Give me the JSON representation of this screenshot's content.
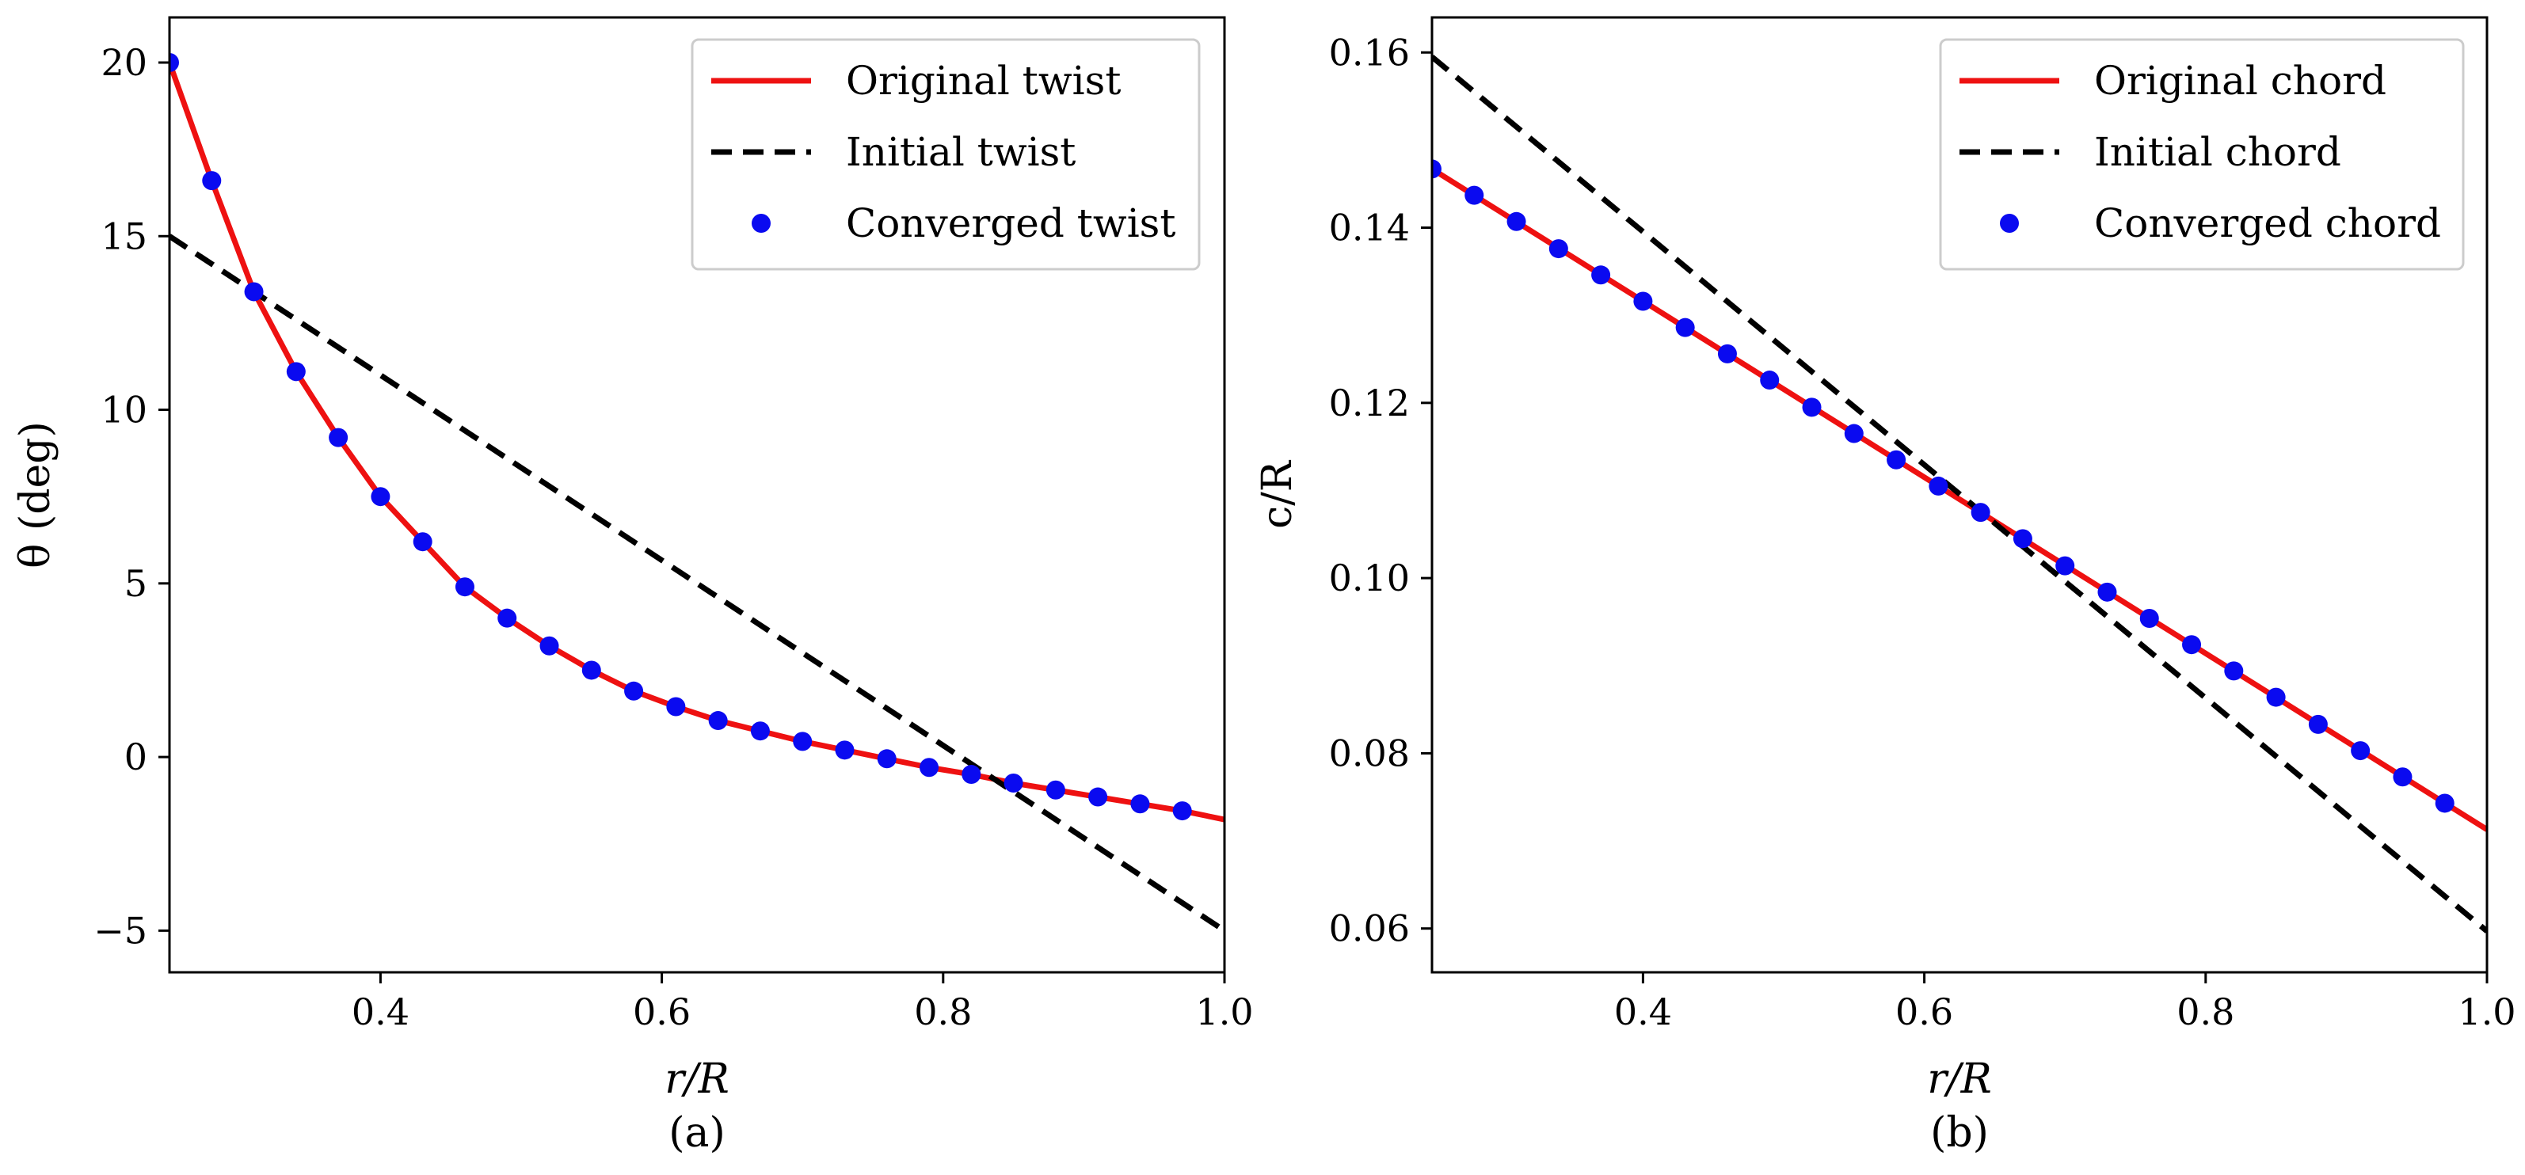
{
  "colors": {
    "original": "#ee1111",
    "initial": "#000000",
    "converged": "#0a0af0",
    "frame": "#000000",
    "legend_border": "#cccccc"
  },
  "chart_data": [
    {
      "type": "line",
      "panel": "(a)",
      "xlabel": "r/R",
      "ylabel": "θ (deg)",
      "caption": "(a)",
      "xlim": [
        0.25,
        1.0
      ],
      "ylim": [
        -6.2,
        21.3
      ],
      "xticks": [
        0.4,
        0.6,
        0.8,
        1.0
      ],
      "xtick_labels": [
        "0.4",
        "0.6",
        "0.8",
        "1.0"
      ],
      "yticks": [
        -5,
        0,
        5,
        10,
        15,
        20
      ],
      "ytick_labels": [
        "−5",
        "0",
        "5",
        "10",
        "15",
        "20"
      ],
      "legend_position": "top-right",
      "series": [
        {
          "name": "Original twist",
          "style": "solid-red-line",
          "x": [
            0.25,
            0.28,
            0.31,
            0.34,
            0.37,
            0.4,
            0.43,
            0.46,
            0.49,
            0.52,
            0.55,
            0.58,
            0.61,
            0.64,
            0.67,
            0.7,
            0.73,
            0.76,
            0.79,
            0.82,
            0.85,
            0.88,
            0.91,
            0.94,
            0.97,
            1.0
          ],
          "y": [
            20.0,
            16.6,
            13.4,
            11.1,
            9.2,
            7.5,
            6.2,
            4.9,
            4.0,
            3.2,
            2.5,
            1.9,
            1.45,
            1.05,
            0.75,
            0.45,
            0.2,
            -0.05,
            -0.3,
            -0.5,
            -0.75,
            -0.95,
            -1.15,
            -1.35,
            -1.55,
            -1.8
          ]
        },
        {
          "name": "Initial twist",
          "style": "dashed-black-line",
          "x": [
            0.25,
            1.0
          ],
          "y": [
            15.0,
            -5.0
          ]
        },
        {
          "name": "Converged twist",
          "style": "blue-markers",
          "x": [
            0.25,
            0.28,
            0.31,
            0.34,
            0.37,
            0.4,
            0.43,
            0.46,
            0.49,
            0.52,
            0.55,
            0.58,
            0.61,
            0.64,
            0.67,
            0.7,
            0.73,
            0.76,
            0.79,
            0.82,
            0.85,
            0.88,
            0.91,
            0.94,
            0.97
          ],
          "y": [
            20.0,
            16.6,
            13.4,
            11.1,
            9.2,
            7.5,
            6.2,
            4.9,
            4.0,
            3.2,
            2.5,
            1.9,
            1.45,
            1.05,
            0.75,
            0.45,
            0.2,
            -0.05,
            -0.3,
            -0.5,
            -0.75,
            -0.95,
            -1.15,
            -1.35,
            -1.55
          ]
        }
      ]
    },
    {
      "type": "line",
      "panel": "(b)",
      "xlabel": "r/R",
      "ylabel": "c/R",
      "caption": "(b)",
      "xlim": [
        0.25,
        1.0
      ],
      "ylim": [
        0.055,
        0.164
      ],
      "xticks": [
        0.4,
        0.6,
        0.8,
        1.0
      ],
      "xtick_labels": [
        "0.4",
        "0.6",
        "0.8",
        "1.0"
      ],
      "yticks": [
        0.06,
        0.08,
        0.1,
        0.12,
        0.14,
        0.16
      ],
      "ytick_labels": [
        "0.06",
        "0.08",
        "0.10",
        "0.12",
        "0.14",
        "0.16"
      ],
      "legend_position": "top-right",
      "series": [
        {
          "name": "Original chord",
          "style": "solid-red-line",
          "x": [
            0.25,
            1.0
          ],
          "y": [
            0.1467,
            0.0713
          ]
        },
        {
          "name": "Initial chord",
          "style": "dashed-black-line",
          "x": [
            0.25,
            1.0
          ],
          "y": [
            0.1595,
            0.0597
          ]
        },
        {
          "name": "Converged chord",
          "style": "blue-markers",
          "x": [
            0.25,
            0.28,
            0.31,
            0.34,
            0.37,
            0.4,
            0.43,
            0.46,
            0.49,
            0.52,
            0.55,
            0.58,
            0.61,
            0.64,
            0.67,
            0.7,
            0.73,
            0.76,
            0.79,
            0.82,
            0.85,
            0.88,
            0.91,
            0.94,
            0.97
          ],
          "y": [
            0.1467,
            0.1437,
            0.1407,
            0.1376,
            0.1346,
            0.1316,
            0.1286,
            0.1256,
            0.1226,
            0.1195,
            0.1165,
            0.1135,
            0.1105,
            0.1075,
            0.1045,
            0.1014,
            0.0984,
            0.0954,
            0.0924,
            0.0894,
            0.0864,
            0.0833,
            0.0803,
            0.0773,
            0.0743
          ]
        }
      ]
    }
  ]
}
